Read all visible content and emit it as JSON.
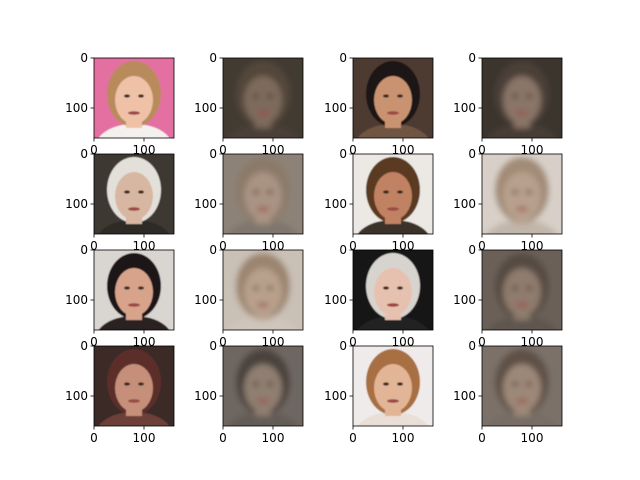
{
  "chart_data": {
    "type": "image-grid",
    "rows": 4,
    "cols": 4,
    "xlim": [
      0,
      160
    ],
    "ylim": [
      160,
      0
    ],
    "xticks": [
      0,
      100
    ],
    "yticks": [
      0,
      100
    ],
    "xtick_labels": [
      "0",
      "100"
    ],
    "ytick_labels": [
      "0",
      "100"
    ],
    "panels": [
      {
        "row": 0,
        "col": 0,
        "kind": "photo",
        "bg": "#e46fa2",
        "skin": "#efc2a8",
        "hair": "#b98b5c",
        "cloth": "#f4f0ee"
      },
      {
        "row": 0,
        "col": 1,
        "kind": "blurry",
        "bg": "#433a33",
        "skin": "#7d6a5b",
        "hair": "#52463b",
        "cloth": "#4b4038"
      },
      {
        "row": 0,
        "col": 2,
        "kind": "photo",
        "bg": "#4e3a30",
        "skin": "#c99372",
        "hair": "#1b1512",
        "cloth": "#6f5443"
      },
      {
        "row": 0,
        "col": 3,
        "kind": "blurry",
        "bg": "#3b342f",
        "skin": "#8a7567",
        "hair": "#4c4038",
        "cloth": "#463d36"
      },
      {
        "row": 1,
        "col": 0,
        "kind": "photo",
        "bg": "#3e3731",
        "skin": "#d8b7a2",
        "hair": "#e3e0da",
        "cloth": "#2d2a28"
      },
      {
        "row": 1,
        "col": 1,
        "kind": "blurry",
        "bg": "#8d8277",
        "skin": "#a99382",
        "hair": "#8c7a69",
        "cloth": "#7f766d"
      },
      {
        "row": 1,
        "col": 2,
        "kind": "photo",
        "bg": "#ece8e4",
        "skin": "#c08263",
        "hair": "#5a3a24",
        "cloth": "#3a302a"
      },
      {
        "row": 1,
        "col": 3,
        "kind": "blurry",
        "bg": "#d8d0c8",
        "skin": "#b7a08d",
        "hair": "#a28b77",
        "cloth": "#c1b6aa"
      },
      {
        "row": 2,
        "col": 0,
        "kind": "photo",
        "bg": "#d9d6d2",
        "skin": "#d8a38b",
        "hair": "#1e1718",
        "cloth": "#2a2121"
      },
      {
        "row": 2,
        "col": 1,
        "kind": "blurry",
        "bg": "#c9c0b6",
        "skin": "#b8a08c",
        "hair": "#9c856f",
        "cloth": "#cfc5bb"
      },
      {
        "row": 2,
        "col": 2,
        "kind": "photo",
        "bg": "#161412",
        "skin": "#e7c1b0",
        "hair": "#d7d4cf",
        "cloth": "#242221"
      },
      {
        "row": 2,
        "col": 3,
        "kind": "blurry",
        "bg": "#6a6159",
        "skin": "#8f7c6d",
        "hair": "#574b42",
        "cloth": "#5f564f"
      },
      {
        "row": 3,
        "col": 0,
        "kind": "photo",
        "bg": "#3a2b28",
        "skin": "#c58f7a",
        "hair": "#5c2e2b",
        "cloth": "#6c3f39"
      },
      {
        "row": 3,
        "col": 1,
        "kind": "blurry",
        "bg": "#6e6660",
        "skin": "#8f7e71",
        "hair": "#4b423c",
        "cloth": "#645c56"
      },
      {
        "row": 3,
        "col": 2,
        "kind": "photo",
        "bg": "#efebea",
        "skin": "#e1b596",
        "hair": "#a87043",
        "cloth": "#e9dfd6"
      },
      {
        "row": 3,
        "col": 3,
        "kind": "blurry",
        "bg": "#7b7169",
        "skin": "#9d8878",
        "hair": "#5e5147",
        "cloth": "#776d65"
      }
    ]
  }
}
